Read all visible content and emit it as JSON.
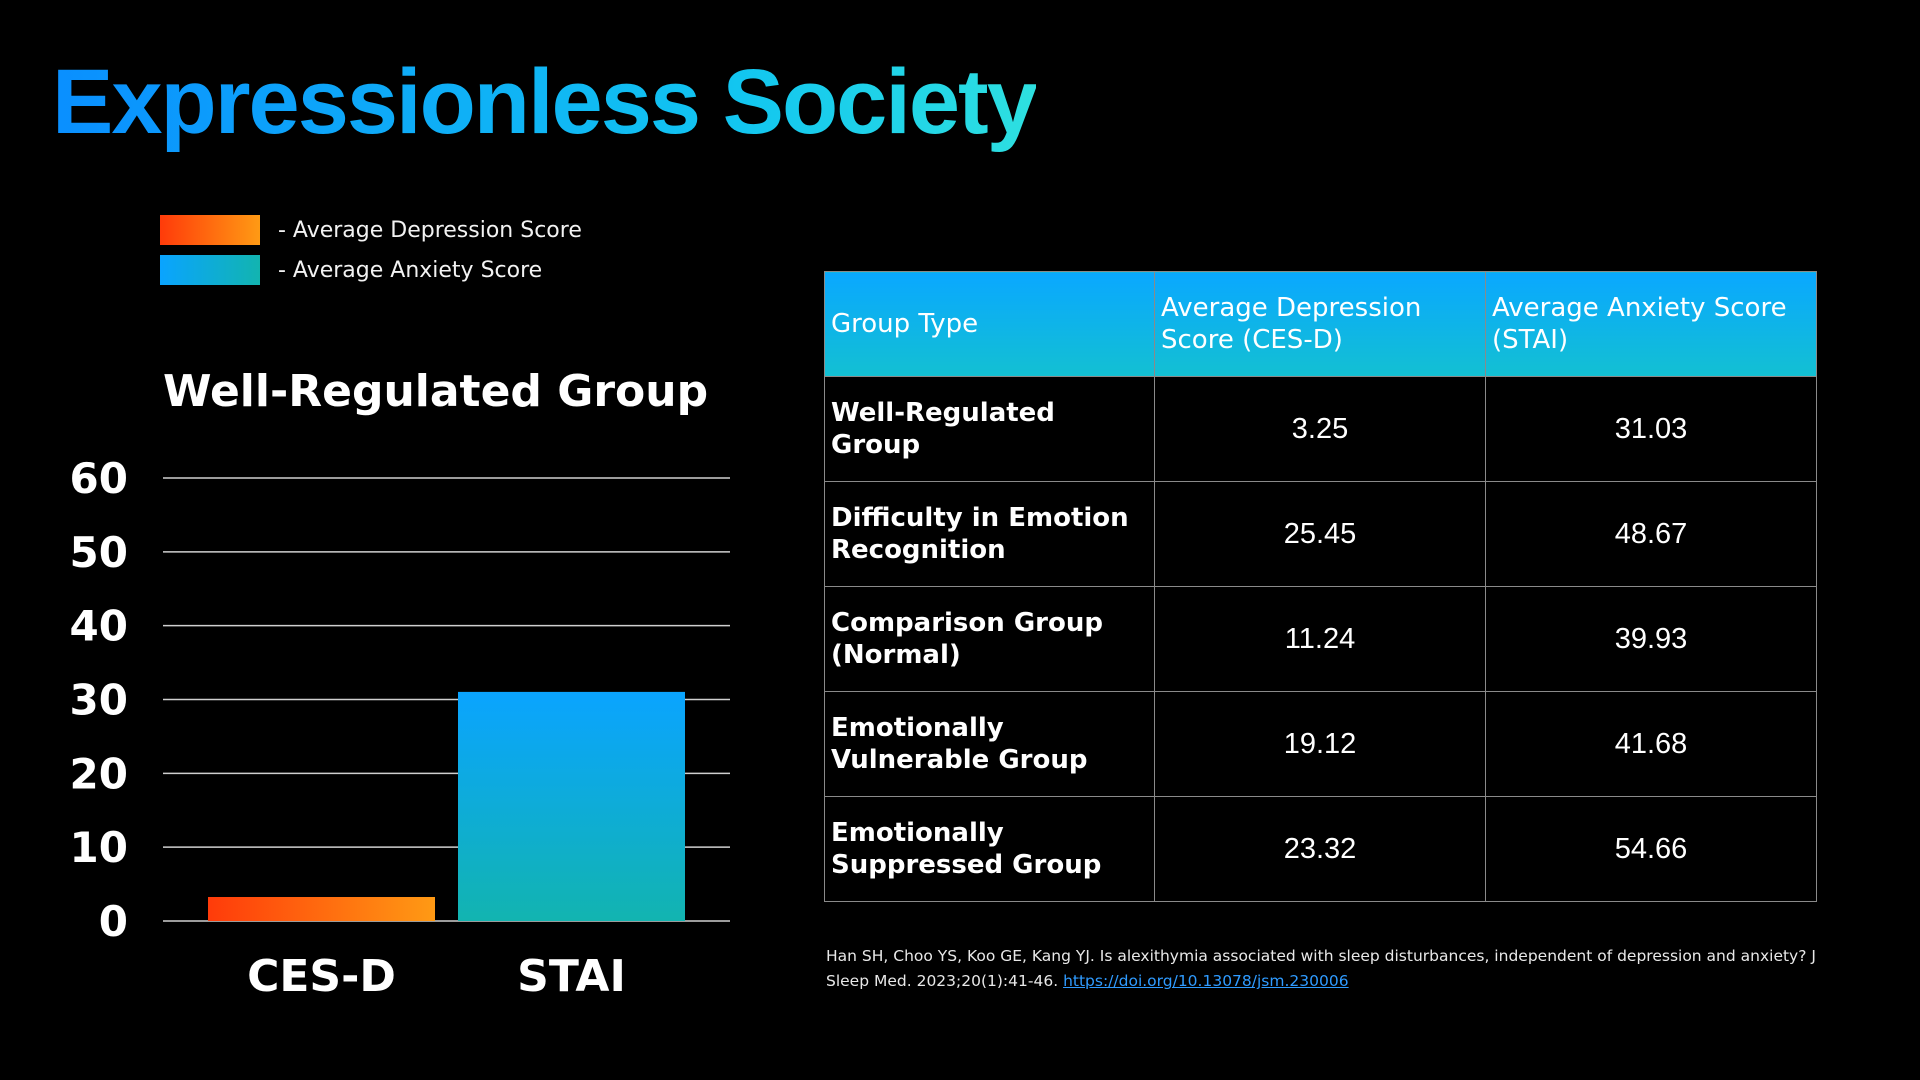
{
  "title": "Expressionless Society",
  "legend": {
    "depression": "- Average Depression Score",
    "anxiety": "- Average Anxiety Score"
  },
  "colors": {
    "title_start": "#0a8fff",
    "title_end": "#2ee0e0",
    "depression_start": "#ff3b0a",
    "depression_end": "#ff9a14",
    "anxiety_start": "#0aa4ff",
    "anxiety_end": "#12b4b0",
    "link": "#2f9bff"
  },
  "chart_data": {
    "type": "bar",
    "title": "Well-Regulated Group",
    "categories": [
      "CES-D",
      "STAI"
    ],
    "values": [
      3.25,
      31.03
    ],
    "ylim": [
      0,
      60
    ],
    "yticks": [
      0,
      10,
      20,
      30,
      40,
      50,
      60
    ],
    "grid": true,
    "xlabel": "",
    "ylabel": ""
  },
  "table": {
    "headers": [
      "Group Type",
      "Average Depression Score (CES-D)",
      "Average Anxiety Score (STAI)"
    ],
    "rows": [
      [
        "Well-Regulated Group",
        "3.25",
        "31.03"
      ],
      [
        "Difficulty in Emotion Recognition",
        "25.45",
        "48.67"
      ],
      [
        "Comparison Group (Normal)",
        "11.24",
        "39.93"
      ],
      [
        "Emotionally Vulnerable Group",
        "19.12",
        "41.68"
      ],
      [
        "Emotionally Suppressed Group",
        "23.32",
        "54.66"
      ]
    ]
  },
  "citation": {
    "text": "Han SH, Choo YS, Koo GE, Kang YJ. Is alexithymia associated with sleep disturbances, independent of depression and anxiety? J Sleep Med. 2023;20(1):41-46. ",
    "link": "https://doi.org/10.13078/jsm.230006"
  }
}
